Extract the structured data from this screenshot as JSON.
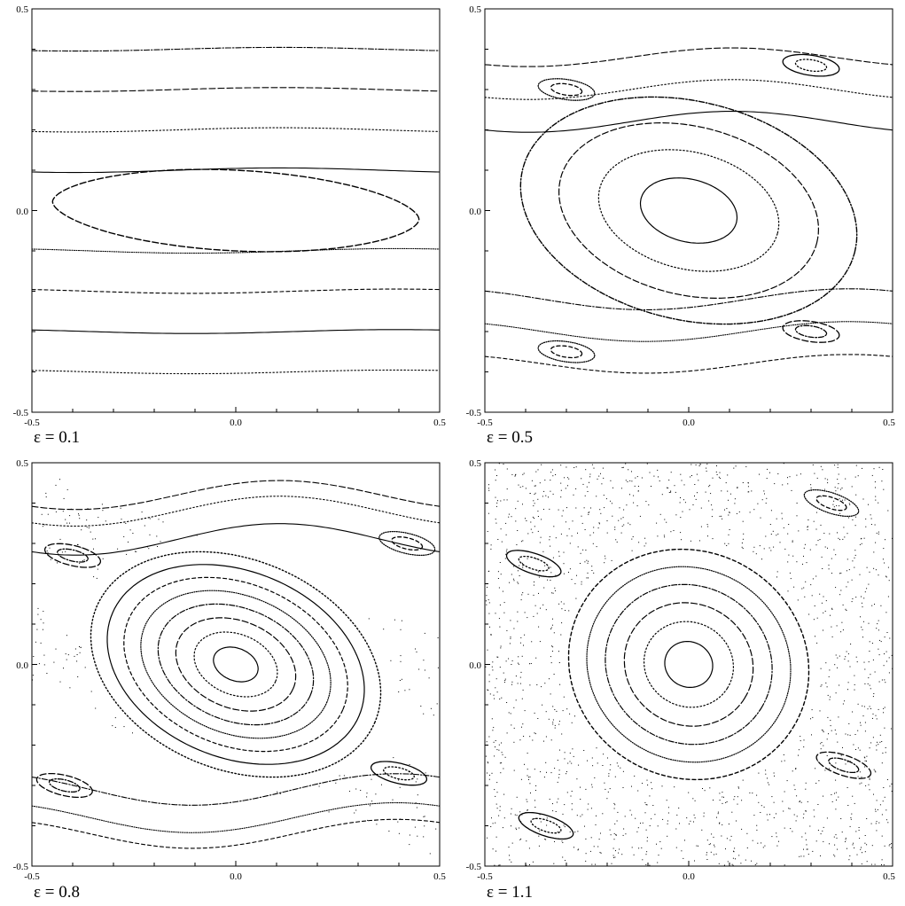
{
  "chart_data": [
    {
      "type": "scatter",
      "subtype": "poincare-section",
      "label": "ε = 0.1",
      "epsilon": 0.1,
      "xlim": [
        -0.5,
        0.5
      ],
      "ylim": [
        -0.5,
        0.5
      ],
      "x_ticks": [
        "-0.5",
        "0.0",
        "0.5"
      ],
      "y_ticks": [
        "0.5",
        "0.0",
        "-0.5"
      ],
      "grid": false,
      "tori_levels": [
        0.1,
        0.2,
        0.3,
        0.4,
        -0.1,
        -0.2,
        -0.3,
        -0.4
      ],
      "island_centers": [
        [
          0.0,
          0.0
        ]
      ],
      "chaotic_sea": false
    },
    {
      "type": "scatter",
      "subtype": "poincare-section",
      "label": "ε = 0.5",
      "epsilon": 0.5,
      "xlim": [
        -0.5,
        0.5
      ],
      "ylim": [
        -0.5,
        0.5
      ],
      "x_ticks": [
        "-0.5",
        "0.0",
        "0.5"
      ],
      "y_ticks": [
        "0.5",
        "0.0",
        "-0.5"
      ],
      "grid": false,
      "tori_levels": [
        0.22,
        0.3,
        0.38,
        -0.22,
        -0.3,
        -0.38
      ],
      "island_centers": [
        [
          0.0,
          0.0
        ],
        [
          -0.3,
          0.3
        ],
        [
          0.3,
          0.36
        ],
        [
          0.3,
          -0.3
        ],
        [
          -0.3,
          -0.35
        ]
      ],
      "chaotic_sea": false
    },
    {
      "type": "scatter",
      "subtype": "poincare-section",
      "label": "ε = 0.8",
      "epsilon": 0.8,
      "xlim": [
        -0.5,
        0.5
      ],
      "ylim": [
        -0.5,
        0.5
      ],
      "x_ticks": [
        "-0.5",
        "0.0",
        "0.5"
      ],
      "y_ticks": [
        "0.5",
        "0.0",
        "-0.5"
      ],
      "grid": false,
      "tori_levels": [
        0.31,
        0.38,
        0.42,
        -0.31,
        -0.38,
        -0.42
      ],
      "island_centers": [
        [
          0.0,
          0.0
        ],
        [
          -0.4,
          0.27
        ],
        [
          0.42,
          0.3
        ],
        [
          0.4,
          -0.27
        ],
        [
          -0.42,
          -0.3
        ]
      ],
      "chaotic_sea": true
    },
    {
      "type": "scatter",
      "subtype": "poincare-section",
      "label": "ε = 1.1",
      "epsilon": 1.1,
      "xlim": [
        -0.5,
        0.5
      ],
      "ylim": [
        -0.5,
        0.5
      ],
      "x_ticks": [
        "-0.5",
        "0.0",
        "0.5"
      ],
      "y_ticks": [
        "0.5",
        "0.0",
        "-0.5"
      ],
      "grid": false,
      "tori_levels": [],
      "island_centers": [
        [
          0.0,
          0.0
        ],
        [
          -0.38,
          0.25
        ],
        [
          0.38,
          -0.25
        ],
        [
          0.35,
          0.4
        ],
        [
          -0.35,
          -0.4
        ]
      ],
      "chaotic_sea": true
    }
  ]
}
